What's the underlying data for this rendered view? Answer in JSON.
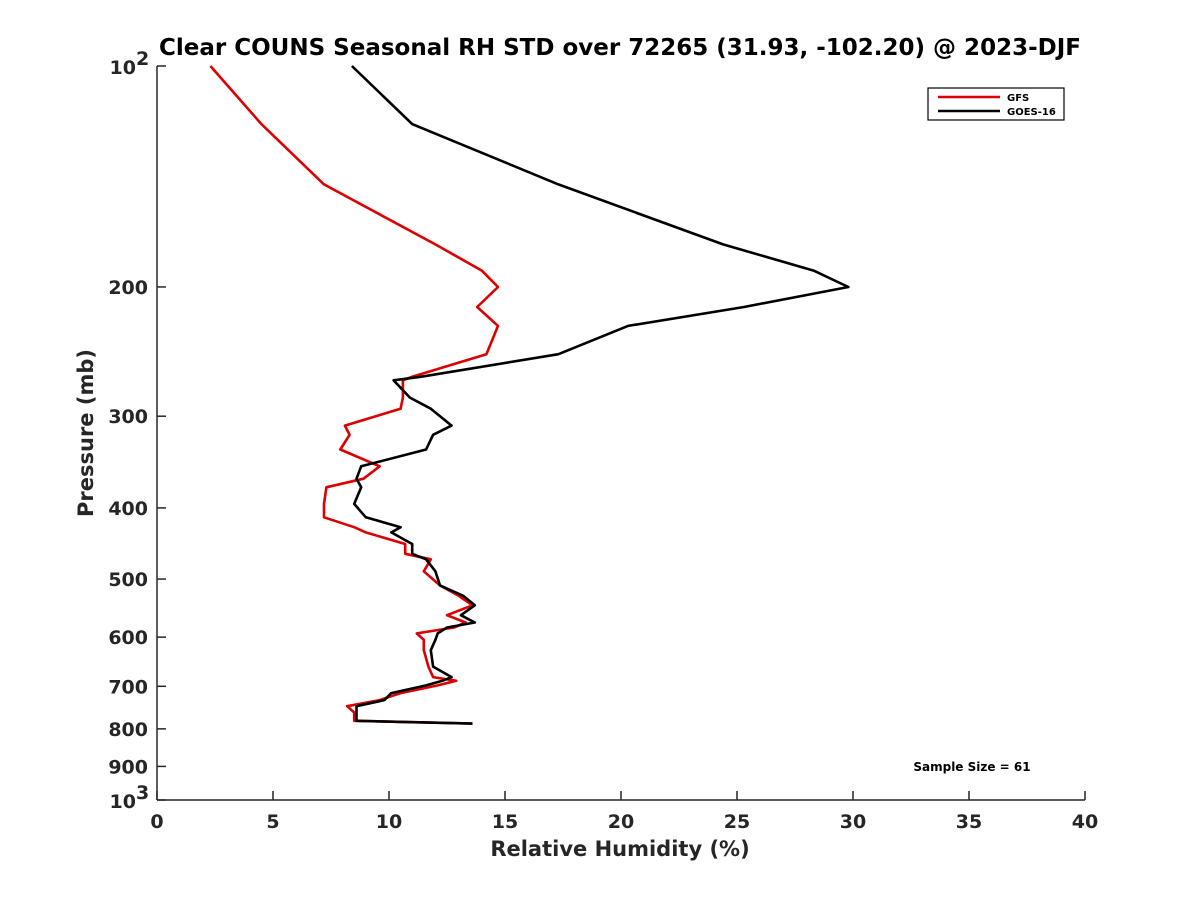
{
  "chart_data": {
    "type": "line",
    "title": "Clear COUNS Seasonal RH STD over 72265 (31.93, -102.20) @ 2023-DJF",
    "xlabel": "Relative Humidity (%)",
    "ylabel": "Pressure (mb)",
    "xlim": [
      0,
      40
    ],
    "ylim": [
      100,
      1000
    ],
    "yscale": "log",
    "y_reversed": true,
    "xticks": [
      0,
      5,
      10,
      15,
      20,
      25,
      30,
      35,
      40
    ],
    "xtick_labels": [
      "0",
      "5",
      "10",
      "15",
      "20",
      "25",
      "30",
      "35",
      "40"
    ],
    "yticks": [
      200,
      300,
      400,
      500,
      600,
      700,
      800,
      900
    ],
    "ytick_labels": [
      "200",
      "300",
      "400",
      "500",
      "600",
      "700",
      "800",
      "900"
    ],
    "yticks_exp": [
      {
        "value": 100,
        "base": "10",
        "exp": "2"
      },
      {
        "value": 1000,
        "base": "10",
        "exp": "3"
      }
    ],
    "grid": false,
    "legend_position": "top-right",
    "annotation": "Sample Size = 61",
    "series": [
      {
        "name": "GFS",
        "color": "#dd0000",
        "points": [
          [
            2.3,
            100
          ],
          [
            4.5,
            120
          ],
          [
            7.2,
            145
          ],
          [
            12.0,
            175
          ],
          [
            14.0,
            190
          ],
          [
            14.7,
            200
          ],
          [
            13.8,
            213
          ],
          [
            14.7,
            226
          ],
          [
            14.2,
            247
          ],
          [
            11.0,
            265
          ],
          [
            10.6,
            268
          ],
          [
            10.6,
            283
          ],
          [
            10.5,
            293
          ],
          [
            8.1,
            309
          ],
          [
            8.3,
            318
          ],
          [
            7.9,
            333
          ],
          [
            9.6,
            351
          ],
          [
            8.9,
            365
          ],
          [
            7.3,
            375
          ],
          [
            7.2,
            395
          ],
          [
            7.2,
            412
          ],
          [
            8.5,
            425
          ],
          [
            9.0,
            432
          ],
          [
            10.7,
            448
          ],
          [
            10.7,
            462
          ],
          [
            11.8,
            470
          ],
          [
            11.5,
            488
          ],
          [
            12.2,
            510
          ],
          [
            13.0,
            527
          ],
          [
            13.6,
            543
          ],
          [
            12.5,
            560
          ],
          [
            13.3,
            573
          ],
          [
            12.8,
            582
          ],
          [
            11.2,
            593
          ],
          [
            11.5,
            605
          ],
          [
            11.5,
            625
          ],
          [
            11.7,
            658
          ],
          [
            11.9,
            680
          ],
          [
            12.9,
            688
          ],
          [
            12.1,
            698
          ],
          [
            10.5,
            715
          ],
          [
            9.6,
            731
          ],
          [
            8.2,
            745
          ],
          [
            8.5,
            760
          ],
          [
            8.5,
            780
          ],
          [
            13.6,
            787
          ]
        ]
      },
      {
        "name": "GOES-16",
        "color": "#000000",
        "points": [
          [
            8.4,
            100
          ],
          [
            11.0,
            120
          ],
          [
            17.3,
            145
          ],
          [
            24.4,
            175
          ],
          [
            28.3,
            190
          ],
          [
            29.8,
            200
          ],
          [
            25.3,
            213
          ],
          [
            20.3,
            226
          ],
          [
            17.3,
            247
          ],
          [
            11.4,
            265
          ],
          [
            10.2,
            268
          ],
          [
            10.9,
            283
          ],
          [
            11.8,
            293
          ],
          [
            12.7,
            309
          ],
          [
            11.9,
            318
          ],
          [
            11.6,
            333
          ],
          [
            8.8,
            351
          ],
          [
            8.6,
            365
          ],
          [
            8.8,
            375
          ],
          [
            8.5,
            395
          ],
          [
            9.0,
            412
          ],
          [
            10.5,
            425
          ],
          [
            10.1,
            432
          ],
          [
            11.0,
            448
          ],
          [
            11.0,
            462
          ],
          [
            11.6,
            470
          ],
          [
            12.0,
            488
          ],
          [
            12.2,
            510
          ],
          [
            13.2,
            527
          ],
          [
            13.7,
            543
          ],
          [
            13.1,
            560
          ],
          [
            13.7,
            573
          ],
          [
            12.5,
            582
          ],
          [
            12.1,
            593
          ],
          [
            12.0,
            605
          ],
          [
            11.8,
            625
          ],
          [
            11.9,
            658
          ],
          [
            12.7,
            680
          ],
          [
            12.3,
            688
          ],
          [
            11.6,
            698
          ],
          [
            10.1,
            715
          ],
          [
            9.8,
            731
          ],
          [
            8.6,
            745
          ],
          [
            8.6,
            760
          ],
          [
            8.6,
            780
          ],
          [
            13.6,
            787
          ]
        ]
      }
    ]
  }
}
